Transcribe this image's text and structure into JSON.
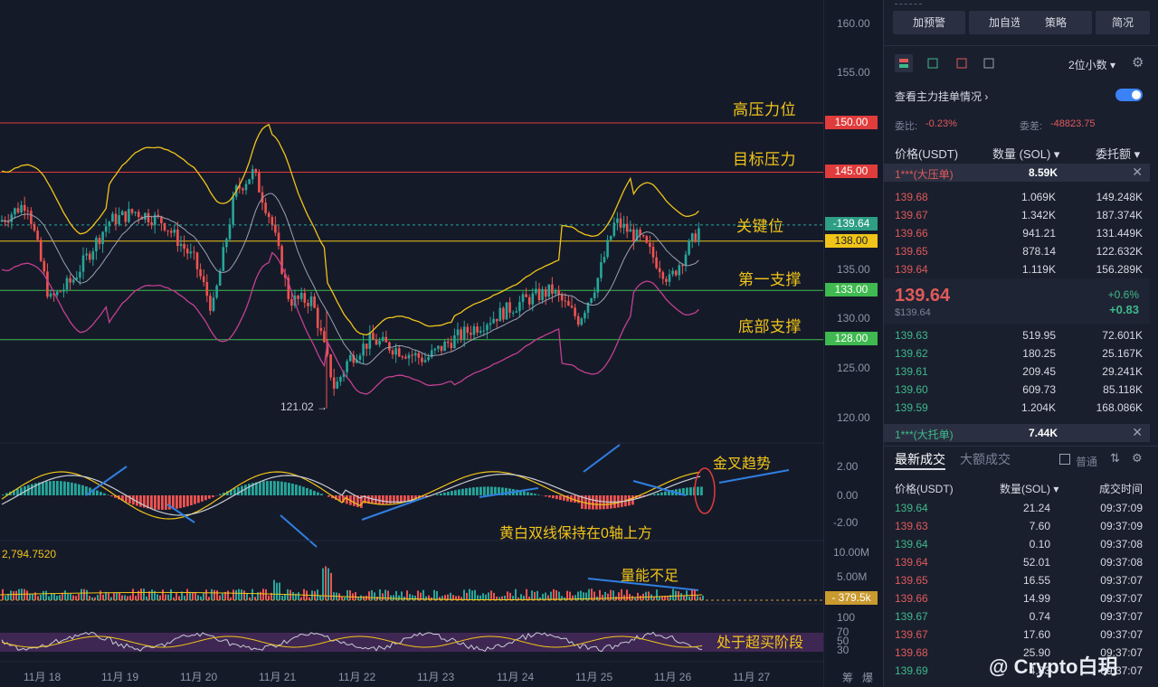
{
  "price_axis": {
    "ticks": [
      "160.00",
      "155.00",
      "150.00",
      "145.00",
      "139.64",
      "138.00",
      "135.00",
      "133.00",
      "130.00",
      "128.00",
      "125.00",
      "120.00"
    ],
    "macd_ticks": [
      "2.00",
      "0.00",
      "-2.00"
    ],
    "vol_ticks": [
      "10.00M",
      "5.00M",
      "379.5k"
    ],
    "rsi_ticks": [
      "100",
      "70",
      "50",
      "30"
    ],
    "tags": {
      "p150": "150.00",
      "p145": "145.00",
      "current": "139.64",
      "p138": "138.00",
      "p133": "133.00",
      "p128": "128.00",
      "vol": "379.5k"
    }
  },
  "colors": {
    "up": "#26a69a",
    "down": "#ef5350",
    "yellow": "#f0c419",
    "accent_red": "#e03c3c",
    "accent_green": "#3fb950"
  },
  "chart_labels": {
    "high_pressure": "高压力位",
    "target_pressure": "目标压力",
    "key_level": "关键位",
    "first_support": "第一支撑",
    "bottom_support": "底部支撑",
    "low_marker": "121.02",
    "golden_cross": "金叉趋势",
    "macd_note": "黄白双线保持在0轴上方",
    "volume_note": "量能不足",
    "overbought_note": "处于超买阶段",
    "macd_value": "2,794.7520"
  },
  "dates": [
    "11月 18",
    "11月 19",
    "11月 20",
    "11月 21",
    "11月 22",
    "11月 23",
    "11月 24",
    "11月 25",
    "11月 26",
    "11月 27"
  ],
  "corner": {
    "a": "筹",
    "b": "爆"
  },
  "panel": {
    "buttons": [
      "加预警",
      "加自选",
      "策略",
      "简况"
    ],
    "decimals": "2位小数",
    "main_orders": "查看主力挂单情况",
    "ratio_label": "委比:",
    "ratio_value": "-0.23%",
    "diff_label": "委差:",
    "diff_value": "-48823.75",
    "col_price": "价格(USDT)",
    "col_qty": "数量 (SOL)",
    "col_total": "委托额",
    "big_ask_label": "1***(大压单)",
    "big_ask_qty": "8.59K",
    "asks": [
      {
        "p": "139.68",
        "q": "1.069K",
        "t": "149.248K"
      },
      {
        "p": "139.67",
        "q": "1.342K",
        "t": "187.374K"
      },
      {
        "p": "139.66",
        "q": "941.21",
        "t": "131.449K"
      },
      {
        "p": "139.65",
        "q": "878.14",
        "t": "122.632K"
      },
      {
        "p": "139.64",
        "q": "1.119K",
        "t": "156.289K"
      }
    ],
    "last_price": "139.64",
    "last_price_sub": "$139.64",
    "change_pct": "+0.6%",
    "change_abs": "+0.83",
    "bids": [
      {
        "p": "139.63",
        "q": "519.95",
        "t": "72.601K"
      },
      {
        "p": "139.62",
        "q": "180.25",
        "t": "25.167K"
      },
      {
        "p": "139.61",
        "q": "209.45",
        "t": "29.241K"
      },
      {
        "p": "139.60",
        "q": "609.73",
        "t": "85.118K"
      },
      {
        "p": "139.59",
        "q": "1.204K",
        "t": "168.086K"
      }
    ],
    "big_bid_label": "1***(大托单)",
    "big_bid_qty": "7.44K",
    "tab_latest": "最新成交",
    "tab_large": "大额成交",
    "normal": "普通",
    "trade_col_price": "价格(USDT)",
    "trade_col_qty": "数量(SOL)",
    "trade_col_time": "成交时间",
    "trades": [
      {
        "p": "139.64",
        "q": "21.24",
        "t": "09:37:09",
        "side": "green"
      },
      {
        "p": "139.63",
        "q": "7.60",
        "t": "09:37:09",
        "side": "red"
      },
      {
        "p": "139.64",
        "q": "0.10",
        "t": "09:37:08",
        "side": "green"
      },
      {
        "p": "139.64",
        "q": "52.01",
        "t": "09:37:08",
        "side": "red"
      },
      {
        "p": "139.65",
        "q": "16.55",
        "t": "09:37:07",
        "side": "red"
      },
      {
        "p": "139.66",
        "q": "14.99",
        "t": "09:37:07",
        "side": "red"
      },
      {
        "p": "139.67",
        "q": "0.74",
        "t": "09:37:07",
        "side": "green"
      },
      {
        "p": "139.67",
        "q": "17.60",
        "t": "09:37:07",
        "side": "red"
      },
      {
        "p": "139.68",
        "q": "25.90",
        "t": "09:37:07",
        "side": "red"
      },
      {
        "p": "139.69",
        "q": "4.83",
        "t": "09:37:07",
        "side": "green"
      }
    ]
  },
  "watermark": "@ Crypto白玥"
}
